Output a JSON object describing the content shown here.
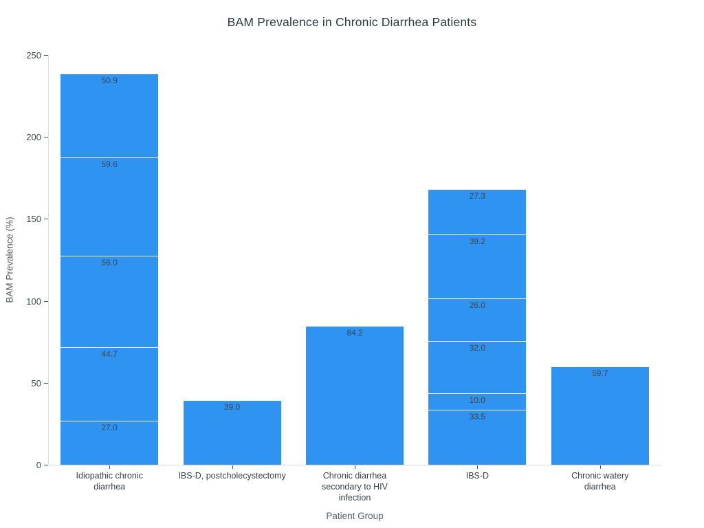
{
  "chart_data": {
    "type": "bar",
    "stacked": true,
    "title": "BAM Prevalence in Chronic Diarrhea Patients",
    "xlabel": "Patient Group",
    "ylabel": "BAM Prevalence (%)",
    "ylim": [
      0,
      250
    ],
    "yticks": [
      "0",
      "50",
      "100",
      "150",
      "200",
      "250"
    ],
    "grid": false,
    "legend": "none",
    "bar_color": "#2F93F1",
    "separator_color": "#FFFFFF",
    "categories": [
      "Idiopathic chronic\ndiarrhea",
      "IBS-D, postcholecystectomy",
      "Chronic diarrhea\nsecondary to HIV\ninfection",
      "IBS-D",
      "Chronic watery\ndiarrhea"
    ],
    "bars": [
      {
        "segments_bottom_to_top": [
          {
            "value": 27.0,
            "label": "27.0"
          },
          {
            "value": 44.7,
            "label": "44.7"
          },
          {
            "value": 56.0,
            "label": "56.0"
          },
          {
            "value": 59.6,
            "label": "59.6"
          },
          {
            "value": 50.9,
            "label": "50.9"
          }
        ]
      },
      {
        "segments_bottom_to_top": [
          {
            "value": 39.0,
            "label": "39.0"
          }
        ]
      },
      {
        "segments_bottom_to_top": [
          {
            "value": 84.2,
            "label": "84.2"
          }
        ]
      },
      {
        "segments_bottom_to_top": [
          {
            "value": 33.5,
            "label": "33.5"
          },
          {
            "value": 10.0,
            "label": "10.0"
          },
          {
            "value": 32.0,
            "label": "32.0"
          },
          {
            "value": 26.0,
            "label": "26.0"
          },
          {
            "value": 39.2,
            "label": "39.2"
          },
          {
            "value": 27.3,
            "label": "27.3"
          }
        ]
      },
      {
        "segments_bottom_to_top": [
          {
            "value": 59.7,
            "label": "59.7"
          }
        ]
      }
    ]
  }
}
